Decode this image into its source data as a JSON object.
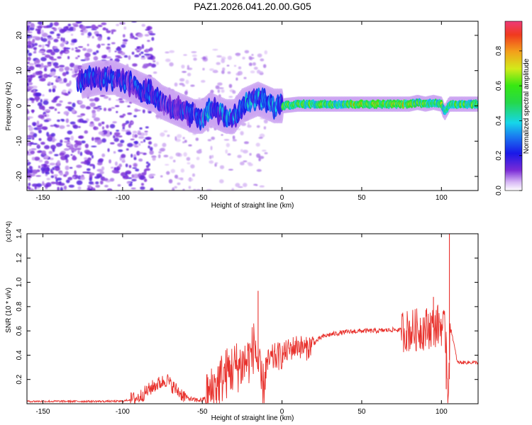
{
  "figure_title": "PAZ1.2026.041.20.00.G05",
  "chart_data": [
    {
      "type": "heatmap",
      "title": "PAZ1.2026.041.20.00.G05",
      "xlabel": "Height of straight line (km)",
      "ylabel": "Frequency (Hz)",
      "xlim": [
        -160,
        123
      ],
      "ylim": [
        -24,
        24
      ],
      "x_ticks": [
        -150,
        -100,
        -50,
        0,
        50,
        100
      ],
      "y_ticks": [
        -20,
        -10,
        0,
        10,
        20
      ],
      "colorbar": {
        "label": "Normalized spectral amplitude",
        "range": [
          0.0,
          0.97
        ],
        "ticks": [
          0.0,
          0.2,
          0.4,
          0.6,
          0.8
        ],
        "tick_labels": [
          "0.0",
          "0.2",
          "0.4",
          "0.6",
          "0.8"
        ]
      },
      "ridge": {
        "x": [
          -125,
          -115,
          -105,
          -100,
          -90,
          -80,
          -75,
          -70,
          -65,
          -60,
          -55,
          -50,
          -45,
          -40,
          -35,
          -30,
          -25,
          -20,
          -15,
          -10,
          -5,
          0,
          10,
          20,
          40,
          60,
          80,
          85,
          90,
          95,
          100,
          102,
          105,
          110,
          123
        ],
        "y": [
          7,
          8,
          8,
          7,
          5,
          3,
          1,
          0,
          -1,
          -2,
          -3,
          -3,
          -1,
          -2,
          -3,
          -3,
          0,
          1,
          2,
          1,
          0,
          0,
          0.5,
          0.5,
          0.5,
          0.5,
          0.5,
          1,
          0.5,
          1,
          0.5,
          -2,
          0.5,
          0.5,
          0.5
        ]
      }
    },
    {
      "type": "line",
      "xlabel": "Height of straight line (km)",
      "ylabel": "SNR (10 * v/v)",
      "y_multiplier": "(x10^4)",
      "xlim": [
        -160,
        123
      ],
      "ylim": [
        0,
        1.4
      ],
      "x_ticks": [
        -150,
        -100,
        -50,
        0,
        50,
        100
      ],
      "y_ticks": [
        0.2,
        0.4,
        0.6,
        0.8,
        1.0,
        1.2,
        1.4
      ],
      "y_tick_labels": [
        "0.2",
        "0.4",
        "0.6",
        "0.8",
        "1.0",
        "1.2",
        "1.4"
      ],
      "series": [
        {
          "name": "SNR",
          "color": "#e8312c",
          "x": [
            -160,
            -130,
            -100,
            -90,
            -85,
            -80,
            -75,
            -72,
            -70,
            -65,
            -60,
            -55,
            -50,
            -45,
            -40,
            -35,
            -30,
            -25,
            -20,
            -17,
            -15,
            -12,
            -10,
            -8,
            -5,
            0,
            5,
            10,
            15,
            20,
            25,
            30,
            40,
            50,
            60,
            70,
            80,
            90,
            95,
            100,
            103,
            104,
            106,
            110,
            115,
            123
          ],
          "y": [
            0.02,
            0.02,
            0.02,
            0.05,
            0.1,
            0.15,
            0.18,
            0.2,
            0.16,
            0.1,
            0.05,
            0.03,
            0.03,
            0.08,
            0.18,
            0.25,
            0.3,
            0.32,
            0.38,
            0.5,
            0.3,
            0.1,
            0.3,
            0.35,
            0.38,
            0.4,
            0.45,
            0.48,
            0.45,
            0.5,
            0.55,
            0.57,
            0.59,
            0.6,
            0.6,
            0.61,
            0.6,
            0.62,
            0.64,
            0.65,
            0.55,
            0.1,
            0.62,
            0.34,
            0.34,
            0.34
          ]
        }
      ],
      "spikes": [
        {
          "x": -15,
          "y": 0.93
        },
        {
          "x": 95,
          "y": 0.88
        },
        {
          "x": 105,
          "y": 1.4
        },
        {
          "x": 103,
          "y": 0.12
        }
      ]
    }
  ]
}
